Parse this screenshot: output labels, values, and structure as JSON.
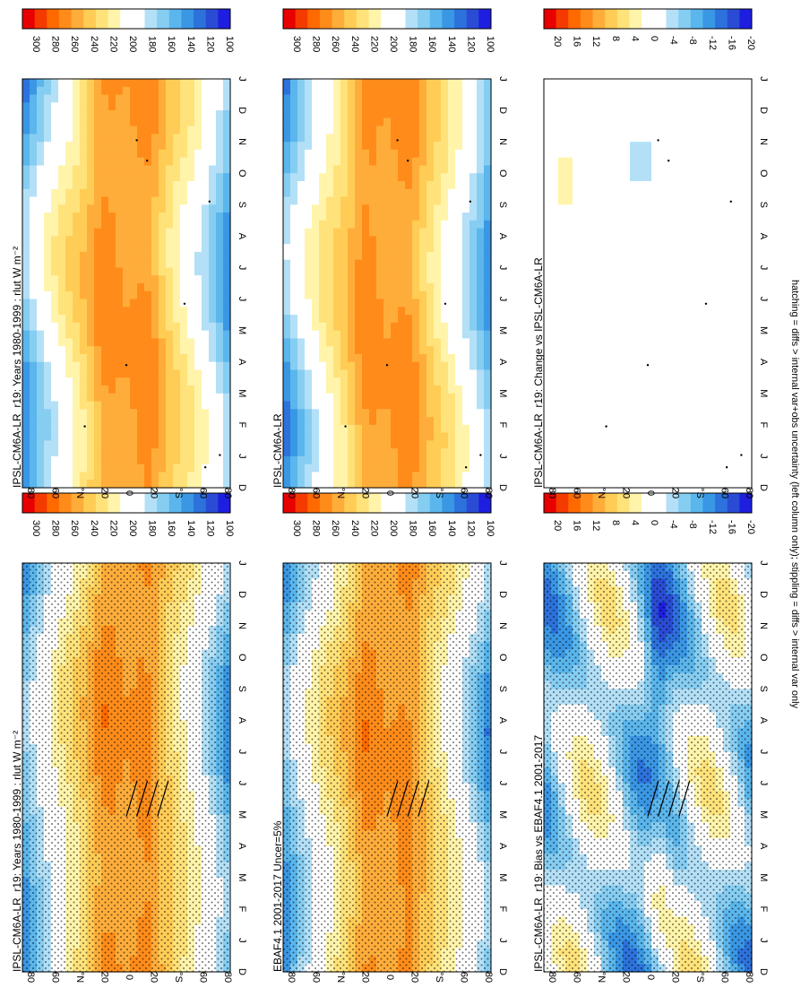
{
  "figure": {
    "footnote": "hatching = diffs > internal var+obs uncertainty (left column only); stippling = diffs > internal var only",
    "orientation": "rotated 90° clockwise",
    "colors": {
      "abs_scale": [
        "#e80000",
        "#f53a00",
        "#ff6a00",
        "#ff8c1a",
        "#ffad3a",
        "#ffcc55",
        "#ffe27a",
        "#fff4aa",
        "#ffffff",
        "#ffffff",
        "#b3e0f7",
        "#86cdf2",
        "#5ab6ec",
        "#3a97e4",
        "#2d72dc",
        "#2a4cd4",
        "#1e1ee0"
      ],
      "diff_scale": [
        "#e80000",
        "#f53a00",
        "#ff6a00",
        "#ff8c1a",
        "#ffad3a",
        "#ffcc55",
        "#ffe27a",
        "#fff4aa",
        "#ffffff",
        "#ffffff",
        "#b3e0f7",
        "#86cdf2",
        "#5ab6ec",
        "#3a97e4",
        "#2d72dc",
        "#2a4cd4",
        "#1e1ee0"
      ]
    }
  },
  "colorbars": {
    "abs": {
      "ticks": [
        "300",
        "280",
        "260",
        "240",
        "220",
        "200",
        "180",
        "160",
        "140",
        "120",
        "100"
      ]
    },
    "diff": {
      "ticks": [
        "20",
        "16",
        "12",
        "8",
        "4",
        "0",
        "-4",
        "-8",
        "-12",
        "-16",
        "-20"
      ]
    }
  },
  "axes": {
    "months": [
      "D",
      "J",
      "F",
      "M",
      "A",
      "M",
      "J",
      "J",
      "A",
      "S",
      "O",
      "N",
      "D",
      "J"
    ],
    "lats": [
      "80",
      "60",
      "°N",
      "20",
      "0",
      "20",
      "°S",
      "60",
      "80"
    ]
  },
  "panels": [
    {
      "id": "left-top",
      "title": "IPSL-CM6A-LR_r19: Years 1980-1999 : rlut W m⁻²",
      "kind": "abs",
      "stipple": "dense",
      "hatch": true
    },
    {
      "id": "left-mid",
      "title": "EBAF4.1 2001-2017 Uncer=5%",
      "kind": "abs",
      "stipple": "dense",
      "hatch": true
    },
    {
      "id": "left-bot",
      "title": "IPSL-CM6A-LR_r19: Bias vs EBAF4.1 2001-2017",
      "kind": "diff",
      "stipple": "dense",
      "hatch": true
    },
    {
      "id": "right-top",
      "title": "IPSL-CM6A-LR_r19: Years 1980-1999 : rlut W m⁻²",
      "kind": "abs",
      "stipple": "sparse",
      "hatch": false
    },
    {
      "id": "right-mid",
      "title": "IPSL-CM6A-LR",
      "kind": "abs",
      "stipple": "sparse",
      "hatch": false
    },
    {
      "id": "right-bot",
      "title": "IPSL-CM6A-LR_r19: Change vs IPSL-CM6A-LR",
      "kind": "diffsmall",
      "stipple": "sparse",
      "hatch": false
    }
  ],
  "chart_data": [
    {
      "type": "heatmap",
      "title": "IPSL-CM6A-LR_r19: Years 1980-1999 : rlut W m⁻²",
      "x": [
        "D",
        "J",
        "F",
        "M",
        "A",
        "M",
        "J",
        "J",
        "A",
        "S",
        "O",
        "N",
        "D",
        "J"
      ],
      "y": [
        "80N",
        "60N",
        "20N",
        "0",
        "20S",
        "60S",
        "80S"
      ],
      "zlim": [
        100,
        300
      ]
    },
    {
      "type": "heatmap",
      "title": "EBAF4.1 2001-2017 Uncer=5%",
      "zlim": [
        100,
        300
      ]
    },
    {
      "type": "heatmap",
      "title": "IPSL-CM6A-LR_r19: Bias vs EBAF4.1 2001-2017",
      "zlim": [
        -20,
        20
      ]
    },
    {
      "type": "heatmap",
      "title": "IPSL-CM6A-LR",
      "zlim": [
        100,
        300
      ]
    },
    {
      "type": "heatmap",
      "title": "IPSL-CM6A-LR_r19: Change vs IPSL-CM6A-LR",
      "zlim": [
        -20,
        20
      ]
    }
  ]
}
